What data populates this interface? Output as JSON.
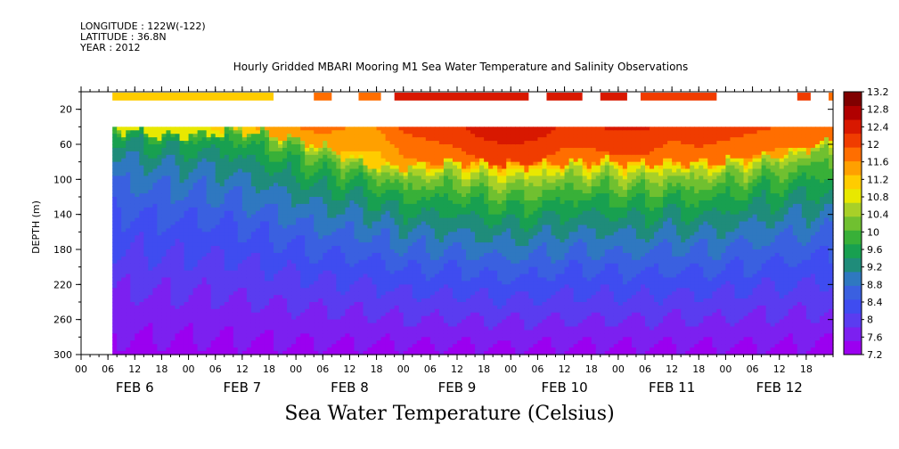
{
  "header": {
    "longitude": "LONGITUDE : 122W(-122)",
    "latitude": "LATITUDE : 36.8N",
    "year": "YEAR : 2012"
  },
  "chart_data": {
    "type": "heatmap",
    "title": "Hourly Gridded MBARI Mooring M1 Sea Water Temperature and Salinity Observations",
    "xlabel": "Sea Water Temperature (Celsius)",
    "ylabel": "DEPTH (m)",
    "x_range_hours": [
      0,
      168
    ],
    "x_tick_labels": [
      "00",
      "06",
      "12",
      "18",
      "00",
      "06",
      "12",
      "18",
      "00",
      "06",
      "12",
      "18",
      "00",
      "06",
      "12",
      "18",
      "00",
      "06",
      "12",
      "18",
      "00",
      "06",
      "12",
      "18",
      "00",
      "06",
      "12",
      "18"
    ],
    "day_labels": [
      "FEB  6",
      "FEB  7",
      "FEB  8",
      "FEB  9",
      "FEB 10",
      "FEB 11",
      "FEB 12"
    ],
    "ylim": [
      300,
      0
    ],
    "y_ticks": [
      20,
      60,
      100,
      140,
      180,
      220,
      260,
      300
    ],
    "colorbar_levels": [
      13.2,
      12.8,
      12.4,
      12,
      11.6,
      11.2,
      10.8,
      10.4,
      10,
      9.6,
      9.2,
      8.8,
      8.4,
      8,
      7.6,
      7.2
    ],
    "data_start_hour": 7,
    "surface_segments_hours": [
      [
        7,
        43
      ],
      [
        52,
        56
      ],
      [
        62,
        67
      ],
      [
        70,
        100
      ],
      [
        104,
        112
      ],
      [
        116,
        122
      ],
      [
        125,
        142
      ],
      [
        160,
        163
      ],
      [
        167,
        168
      ]
    ],
    "surface_segment_temps": [
      11.3,
      11.9,
      11.9,
      12.3,
      12.4,
      12.3,
      12.2,
      12.1,
      11.8
    ],
    "mixed_layer_top_m": 40,
    "mixed_layer_depth_profile": {
      "hours": [
        7,
        12,
        18,
        24,
        30,
        36,
        40,
        48,
        54,
        60,
        66,
        72,
        78,
        84,
        90,
        96,
        102,
        108,
        114,
        120,
        126,
        132,
        138,
        144,
        150,
        156,
        162,
        168
      ],
      "depth_m": [
        40,
        44,
        48,
        48,
        45,
        42,
        46,
        52,
        62,
        74,
        84,
        84,
        82,
        78,
        80,
        82,
        80,
        80,
        78,
        78,
        80,
        80,
        80,
        78,
        74,
        70,
        62,
        55
      ]
    },
    "surface_temp_profile": {
      "hours": [
        7,
        24,
        30,
        36,
        42,
        48,
        54,
        60,
        66,
        72,
        78,
        84,
        90,
        96,
        102,
        108,
        114,
        120,
        126,
        132,
        138,
        144,
        150,
        156,
        162,
        168
      ],
      "temp": [
        10.8,
        10.9,
        11.0,
        11.2,
        11.4,
        11.6,
        11.7,
        11.6,
        11.6,
        12.0,
        12.1,
        12.2,
        12.4,
        12.5,
        12.4,
        12.2,
        12.2,
        12.3,
        12.3,
        12.1,
        12.2,
        12.1,
        12.0,
        11.9,
        11.9,
        11.9
      ]
    },
    "deep_temp_at_300m": 7.4
  },
  "colors": {
    "scale": [
      "#9b00f0",
      "#7c20f0",
      "#5a3cf0",
      "#3f4cf0",
      "#3a60e0",
      "#2f78c0",
      "#1f8c7a",
      "#18a050",
      "#38b038",
      "#70c030",
      "#a8d028",
      "#e8e800",
      "#ffcc00",
      "#ffa000",
      "#ff6e00",
      "#f03c00",
      "#d81800",
      "#b00000",
      "#800000"
    ]
  }
}
